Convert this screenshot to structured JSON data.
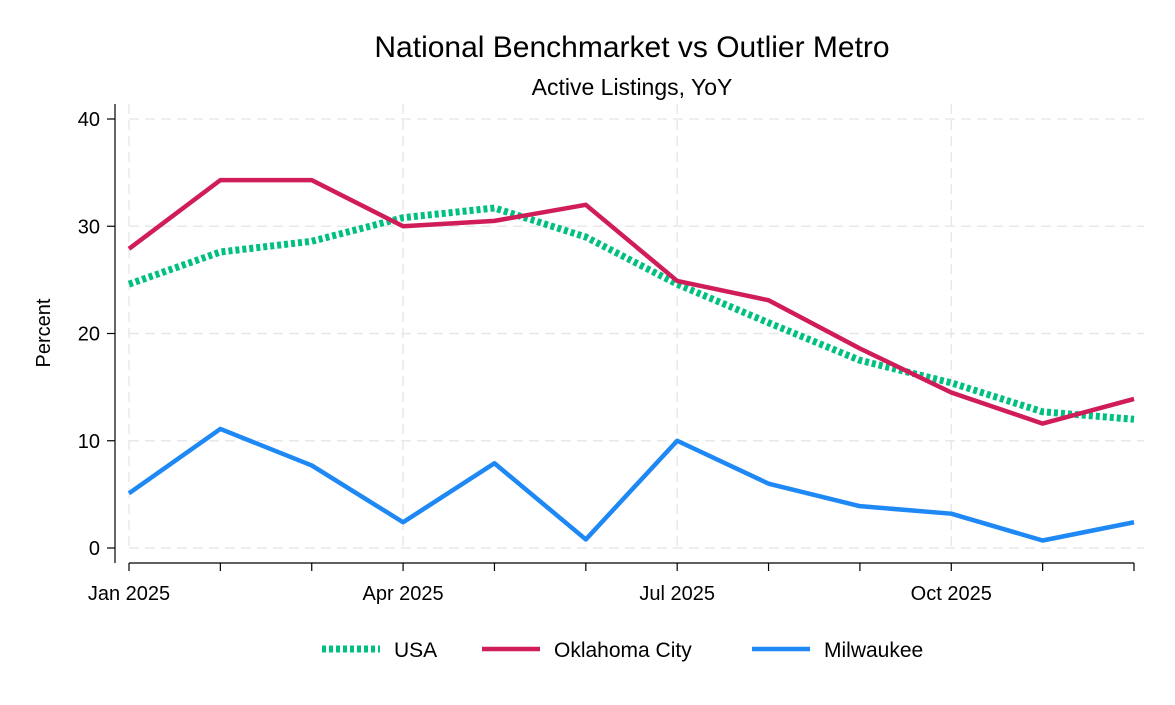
{
  "chart_data": {
    "type": "line",
    "title": "National Benchmarket vs Outlier Metro",
    "subtitle": "Active Listings, YoY",
    "xlabel": "",
    "ylabel": "Percent",
    "ylim": [
      0,
      40
    ],
    "yticks": [
      0,
      10,
      20,
      30,
      40
    ],
    "x": [
      "2025-01",
      "2025-02",
      "2025-03",
      "2025-04",
      "2025-05",
      "2025-06",
      "2025-07",
      "2025-08",
      "2025-09",
      "2025-10",
      "2025-11",
      "2025-12"
    ],
    "xtick_labels": [
      {
        "x": "2025-01",
        "label": "Jan 2025"
      },
      {
        "x": "2025-04",
        "label": "Apr 2025"
      },
      {
        "x": "2025-07",
        "label": "Jul 2025"
      },
      {
        "x": "2025-10",
        "label": "Oct 2025"
      }
    ],
    "grid": true,
    "legend_position": "bottom",
    "series": [
      {
        "name": "USA",
        "color": "#00c07f",
        "style": "dotted-thick",
        "values": [
          24.6,
          27.6,
          28.6,
          30.8,
          31.7,
          29.0,
          24.6,
          21.0,
          17.5,
          15.4,
          12.7,
          12.0
        ]
      },
      {
        "name": "Oklahoma City",
        "color": "#d01c5b",
        "style": "solid",
        "values": [
          27.9,
          34.3,
          34.3,
          30.0,
          30.5,
          32.0,
          24.9,
          23.1,
          18.6,
          14.5,
          11.6,
          13.9
        ]
      },
      {
        "name": "Milwaukee",
        "color": "#1e88f5",
        "style": "solid",
        "values": [
          5.1,
          11.1,
          7.7,
          2.4,
          7.9,
          0.8,
          10.0,
          6.0,
          3.9,
          3.2,
          0.7,
          2.4
        ]
      }
    ]
  }
}
